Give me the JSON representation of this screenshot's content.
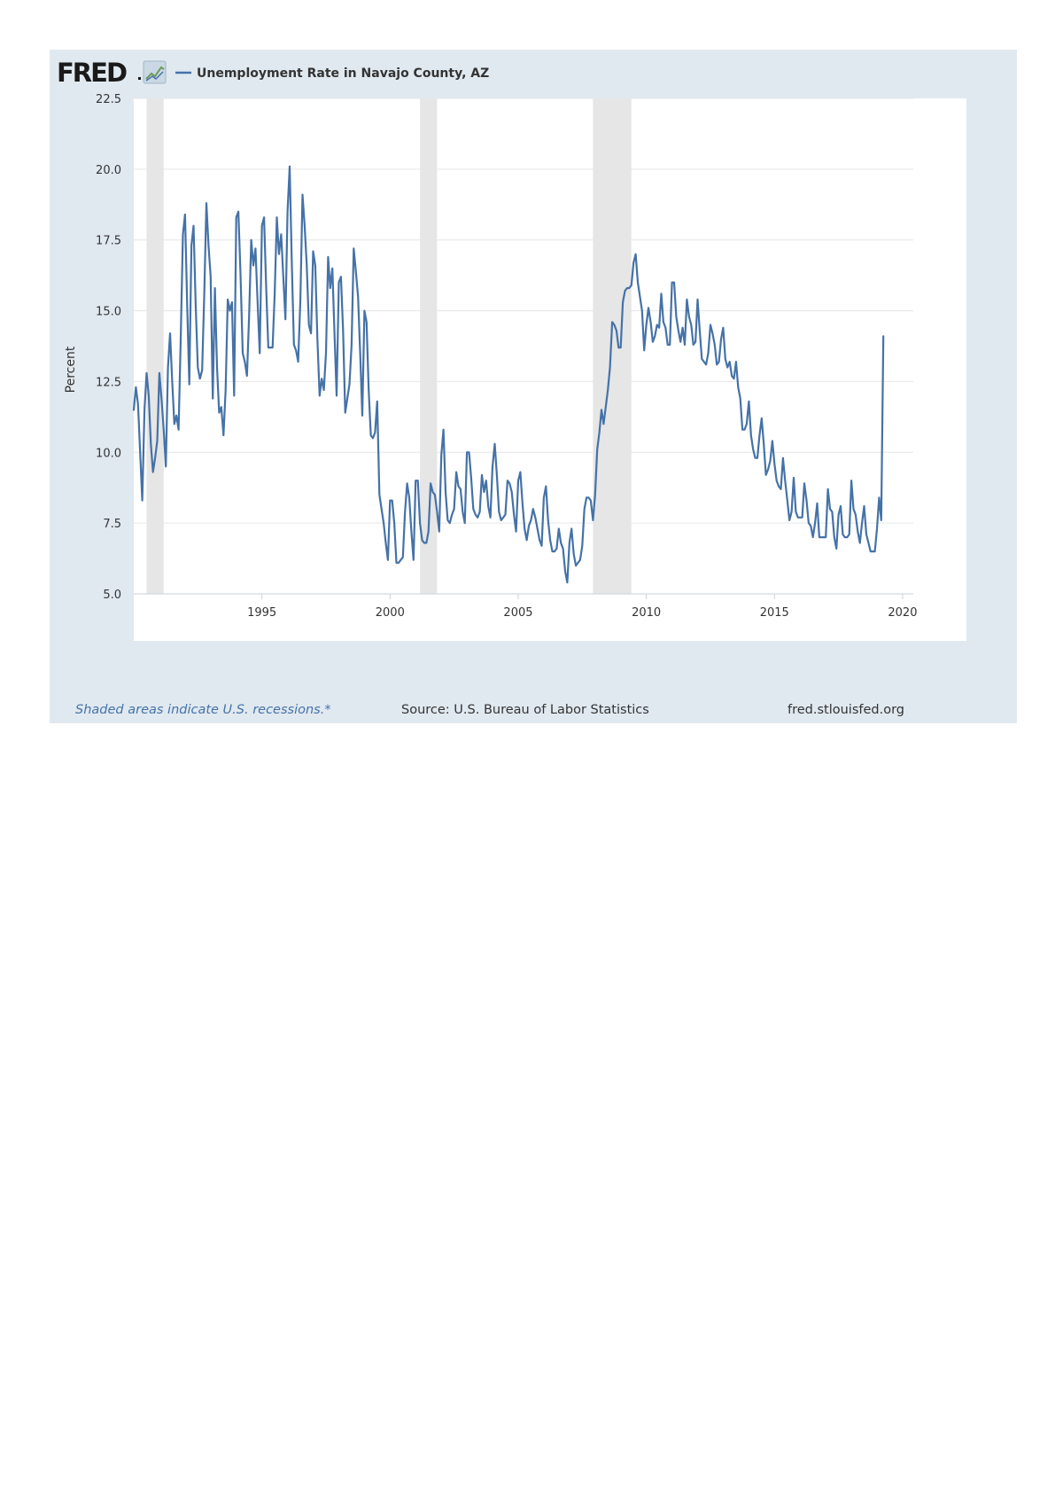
{
  "brand": {
    "logo_text": "FRED"
  },
  "chart_data": {
    "type": "line",
    "title": "",
    "xlabel": "",
    "ylabel": "Percent",
    "ylim": [
      5.0,
      22.5
    ],
    "xlim": [
      "1990-01",
      "2020-06"
    ],
    "yticks": [
      "5.0",
      "7.5",
      "10.0",
      "12.5",
      "15.0",
      "17.5",
      "20.0",
      "22.5"
    ],
    "xticks": [
      "1995",
      "2000",
      "2005",
      "2010",
      "2015",
      "2020"
    ],
    "grid": "horizontal",
    "legend_placement": "top-left",
    "recessions": [
      [
        "1990-07",
        "1991-03"
      ],
      [
        "2001-03",
        "2001-11"
      ],
      [
        "2007-12",
        "2009-06"
      ]
    ],
    "series": [
      {
        "name": "Unemployment Rate in Navajo County, AZ",
        "color": "#4572a7",
        "start": "1990-01",
        "frequency": "monthly",
        "values": [
          11.5,
          12.3,
          11.7,
          10.0,
          8.3,
          11.5,
          12.8,
          12.0,
          10.3,
          9.3,
          9.8,
          10.4,
          12.8,
          11.9,
          10.8,
          9.5,
          13.0,
          14.2,
          12.5,
          11.0,
          11.3,
          10.8,
          14.0,
          17.7,
          18.4,
          15.2,
          12.4,
          17.3,
          18.0,
          15.2,
          13.0,
          12.6,
          12.9,
          15.6,
          18.8,
          17.3,
          16.2,
          11.9,
          15.8,
          13.0,
          11.4,
          11.6,
          10.6,
          12.2,
          15.4,
          15.0,
          15.3,
          12.0,
          18.3,
          18.5,
          16.3,
          13.5,
          13.2,
          12.7,
          14.8,
          17.5,
          16.6,
          17.2,
          15.3,
          13.5,
          18.0,
          18.3,
          15.8,
          13.7,
          13.7,
          13.7,
          15.6,
          18.3,
          17.0,
          17.7,
          16.2,
          14.7,
          18.5,
          20.1,
          16.7,
          13.8,
          13.6,
          13.2,
          15.4,
          19.1,
          18.0,
          16.6,
          14.5,
          14.2,
          17.1,
          16.6,
          14.0,
          12.0,
          12.6,
          12.2,
          13.5,
          16.9,
          15.8,
          16.5,
          14.2,
          12.0,
          16.0,
          16.2,
          14.3,
          11.4,
          11.9,
          12.4,
          13.8,
          17.2,
          16.4,
          15.5,
          13.5,
          11.3,
          15.0,
          14.6,
          12.2,
          10.6,
          10.5,
          10.7,
          11.8,
          8.5,
          8.0,
          7.5,
          6.8,
          6.2,
          8.3,
          8.3,
          7.5,
          6.1,
          6.1,
          6.2,
          6.3,
          7.9,
          8.9,
          8.4,
          7.2,
          6.2,
          9.0,
          9.0,
          7.5,
          6.9,
          6.8,
          6.8,
          7.2,
          8.9,
          8.6,
          8.5,
          7.9,
          7.2,
          9.9,
          10.8,
          8.6,
          7.6,
          7.5,
          7.8,
          8.0,
          9.3,
          8.8,
          8.7,
          7.9,
          7.5,
          10.0,
          10.0,
          9.1,
          8.0,
          7.8,
          7.7,
          7.9,
          9.2,
          8.6,
          9.0,
          8.1,
          7.7,
          9.5,
          10.3,
          9.2,
          7.9,
          7.6,
          7.7,
          7.8,
          9.0,
          8.9,
          8.6,
          7.8,
          7.2,
          9.0,
          9.3,
          8.2,
          7.3,
          6.9,
          7.4,
          7.6,
          8.0,
          7.7,
          7.3,
          6.9,
          6.7,
          8.4,
          8.8,
          7.6,
          6.9,
          6.5,
          6.5,
          6.6,
          7.3,
          6.8,
          6.6,
          5.8,
          5.4,
          6.8,
          7.3,
          6.4,
          6.0,
          6.1,
          6.2,
          6.7,
          8.0,
          8.4,
          8.4,
          8.3,
          7.6,
          8.5,
          10.1,
          10.7,
          11.5,
          11.0,
          11.6,
          12.2,
          13.0,
          14.6,
          14.5,
          14.3,
          13.7,
          13.7,
          15.3,
          15.7,
          15.8,
          15.8,
          15.9,
          16.7,
          17.0,
          16.0,
          15.5,
          15.0,
          13.6,
          14.5,
          15.1,
          14.6,
          13.9,
          14.1,
          14.5,
          14.4,
          15.6,
          14.6,
          14.4,
          13.8,
          13.8,
          16.0,
          16.0,
          14.8,
          14.3,
          13.9,
          14.4,
          13.8,
          15.4,
          14.8,
          14.5,
          13.8,
          13.9,
          15.4,
          14.3,
          13.3,
          13.2,
          13.1,
          13.5,
          14.5,
          14.2,
          13.8,
          13.1,
          13.2,
          14.0,
          14.4,
          13.3,
          13.0,
          13.2,
          12.7,
          12.6,
          13.2,
          12.3,
          11.9,
          10.8,
          10.8,
          11.0,
          11.8,
          10.6,
          10.1,
          9.8,
          9.8,
          10.6,
          11.2,
          10.3,
          9.2,
          9.4,
          9.7,
          10.4,
          9.6,
          9.0,
          8.8,
          8.7,
          9.8,
          9.0,
          8.3,
          7.6,
          7.9,
          9.1,
          7.9,
          7.7,
          7.7,
          7.7,
          8.9,
          8.3,
          7.5,
          7.4,
          7.0,
          7.5,
          8.2,
          7.0,
          7.0,
          7.0,
          7.0,
          8.7,
          8.0,
          7.9,
          7.0,
          6.6,
          7.8,
          8.1,
          7.1,
          7.0,
          7.0,
          7.1,
          9.0,
          8.0,
          7.8,
          7.2,
          6.8,
          7.5,
          8.1,
          7.1,
          6.8,
          6.5,
          6.5,
          6.5,
          7.3,
          8.4,
          7.6,
          14.1
        ]
      }
    ]
  },
  "footer": {
    "recession_note": "Shaded areas indicate U.S. recessions.*",
    "source": "Source: U.S. Bureau of Labor Statistics",
    "url": "fred.stlouisfed.org"
  }
}
